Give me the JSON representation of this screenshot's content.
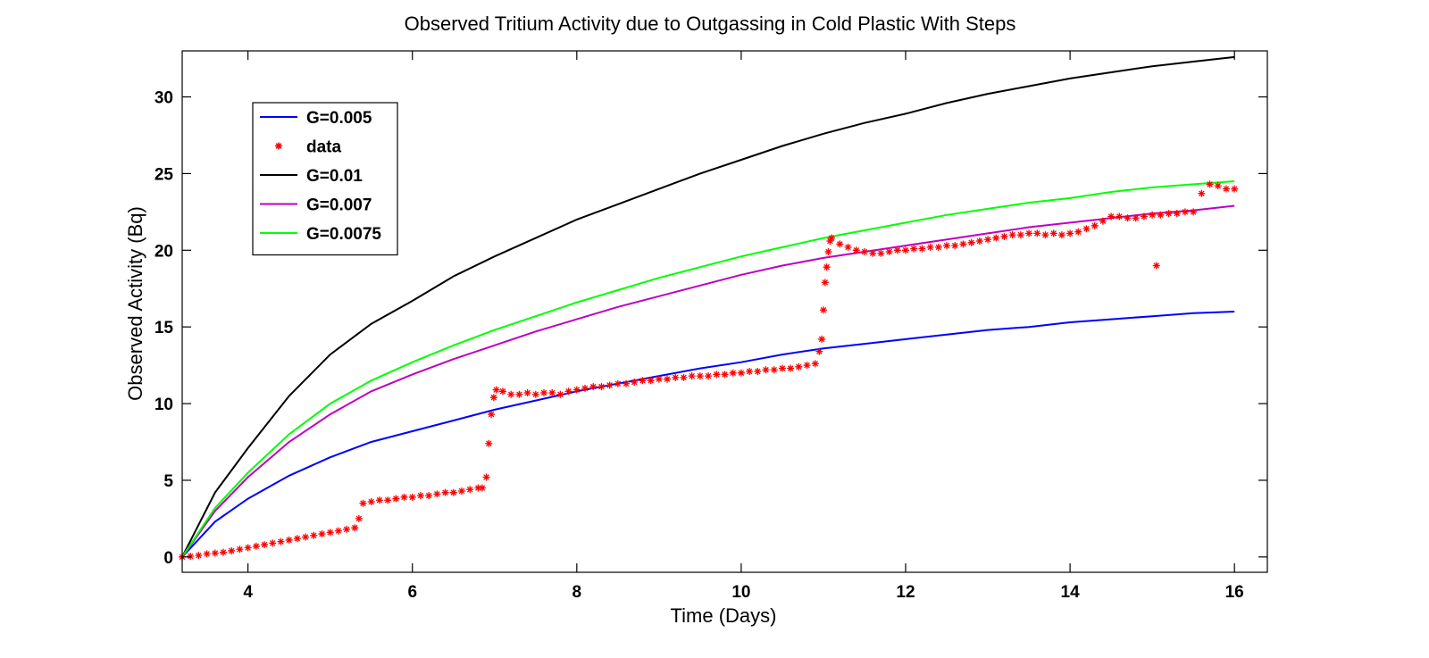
{
  "chart_data": {
    "type": "line",
    "title": "Observed Tritium Activity due to Outgassing in Cold Plastic With Steps",
    "xlabel": "Time (Days)",
    "ylabel": "Observed Activity (Bq)",
    "xlim": [
      3.2,
      16.4
    ],
    "ylim": [
      -1,
      33
    ],
    "xticks": [
      4,
      6,
      8,
      10,
      12,
      14,
      16
    ],
    "yticks": [
      0,
      5,
      10,
      15,
      20,
      25,
      30
    ],
    "grid": false,
    "legend_position": "top-left",
    "colors": {
      "G=0.005": "#0000ff",
      "data": "#ff0000",
      "G=0.01": "#000000",
      "G=0.007": "#bf00bf",
      "G=0.0075": "#00ff00"
    },
    "legend": [
      "G=0.005",
      "data",
      "G=0.01",
      "G=0.007",
      "G=0.0075"
    ],
    "series": [
      {
        "name": "G=0.005",
        "kind": "line",
        "color": "#0000ff",
        "x": [
          3.2,
          3.6,
          4.0,
          4.5,
          5.0,
          5.5,
          6.0,
          6.5,
          7.0,
          7.5,
          8.0,
          8.5,
          9.0,
          9.5,
          10.0,
          10.5,
          11.0,
          11.5,
          12.0,
          12.5,
          13.0,
          13.5,
          14.0,
          14.5,
          15.0,
          15.5,
          16.0
        ],
        "y": [
          0.0,
          2.3,
          3.8,
          5.3,
          6.5,
          7.5,
          8.2,
          8.9,
          9.6,
          10.2,
          10.8,
          11.3,
          11.8,
          12.3,
          12.7,
          13.2,
          13.6,
          13.9,
          14.2,
          14.5,
          14.8,
          15.0,
          15.3,
          15.5,
          15.7,
          15.9,
          16.0
        ]
      },
      {
        "name": "G=0.01",
        "kind": "line",
        "color": "#000000",
        "x": [
          3.2,
          3.6,
          4.0,
          4.5,
          5.0,
          5.5,
          6.0,
          6.5,
          7.0,
          7.5,
          8.0,
          8.5,
          9.0,
          9.5,
          10.0,
          10.5,
          11.0,
          11.5,
          12.0,
          12.5,
          13.0,
          13.5,
          14.0,
          14.5,
          15.0,
          15.5,
          16.0
        ],
        "y": [
          0.0,
          4.2,
          7.1,
          10.5,
          13.2,
          15.2,
          16.7,
          18.3,
          19.6,
          20.8,
          22.0,
          23.0,
          24.0,
          25.0,
          25.9,
          26.8,
          27.6,
          28.3,
          28.9,
          29.6,
          30.2,
          30.7,
          31.2,
          31.6,
          32.0,
          32.3,
          32.6
        ]
      },
      {
        "name": "G=0.007",
        "kind": "line",
        "color": "#bf00bf",
        "x": [
          3.2,
          3.6,
          4.0,
          4.5,
          5.0,
          5.5,
          6.0,
          6.5,
          7.0,
          7.5,
          8.0,
          8.5,
          9.0,
          9.5,
          10.0,
          10.5,
          11.0,
          11.5,
          12.0,
          12.5,
          13.0,
          13.5,
          14.0,
          14.5,
          15.0,
          15.5,
          16.0
        ],
        "y": [
          0.0,
          3.0,
          5.2,
          7.5,
          9.3,
          10.8,
          11.9,
          12.9,
          13.8,
          14.7,
          15.5,
          16.3,
          17.0,
          17.7,
          18.4,
          19.0,
          19.5,
          19.9,
          20.3,
          20.7,
          21.1,
          21.5,
          21.8,
          22.1,
          22.4,
          22.6,
          22.9
        ]
      },
      {
        "name": "G=0.0075",
        "kind": "line",
        "color": "#00ff00",
        "x": [
          3.2,
          3.6,
          4.0,
          4.5,
          5.0,
          5.5,
          6.0,
          6.5,
          7.0,
          7.5,
          8.0,
          8.5,
          9.0,
          9.5,
          10.0,
          10.5,
          11.0,
          11.5,
          12.0,
          12.5,
          13.0,
          13.5,
          14.0,
          14.5,
          15.0,
          15.5,
          16.0
        ],
        "y": [
          0.0,
          3.2,
          5.5,
          8.0,
          10.0,
          11.5,
          12.7,
          13.8,
          14.8,
          15.7,
          16.6,
          17.4,
          18.2,
          18.9,
          19.6,
          20.2,
          20.8,
          21.3,
          21.8,
          22.3,
          22.7,
          23.1,
          23.4,
          23.8,
          24.1,
          24.3,
          24.5
        ]
      },
      {
        "name": "data",
        "kind": "scatter",
        "marker": "*",
        "color": "#ff0000",
        "x": [
          3.2,
          3.3,
          3.4,
          3.5,
          3.6,
          3.7,
          3.8,
          3.9,
          4.0,
          4.1,
          4.2,
          4.3,
          4.4,
          4.5,
          4.6,
          4.7,
          4.8,
          4.9,
          5.0,
          5.1,
          5.2,
          5.3,
          5.35,
          5.4,
          5.5,
          5.6,
          5.7,
          5.8,
          5.9,
          6.0,
          6.1,
          6.2,
          6.3,
          6.4,
          6.5,
          6.6,
          6.7,
          6.8,
          6.85,
          6.9,
          6.93,
          6.96,
          6.99,
          7.02,
          7.1,
          7.2,
          7.3,
          7.4,
          7.5,
          7.6,
          7.7,
          7.8,
          7.9,
          8.0,
          8.1,
          8.2,
          8.3,
          8.4,
          8.5,
          8.6,
          8.7,
          8.8,
          8.9,
          9.0,
          9.1,
          9.2,
          9.3,
          9.4,
          9.5,
          9.6,
          9.7,
          9.8,
          9.9,
          10.0,
          10.1,
          10.2,
          10.3,
          10.4,
          10.5,
          10.6,
          10.7,
          10.8,
          10.9,
          10.95,
          10.98,
          11.0,
          11.02,
          11.04,
          11.06,
          11.08,
          11.1,
          11.2,
          11.3,
          11.4,
          11.5,
          11.6,
          11.7,
          11.8,
          11.9,
          12.0,
          12.1,
          12.2,
          12.3,
          12.4,
          12.5,
          12.6,
          12.7,
          12.8,
          12.9,
          13.0,
          13.1,
          13.2,
          13.3,
          13.4,
          13.5,
          13.6,
          13.7,
          13.8,
          13.9,
          14.0,
          14.1,
          14.2,
          14.3,
          14.4,
          14.5,
          14.6,
          14.7,
          14.8,
          14.9,
          15.0,
          15.05,
          15.1,
          15.2,
          15.3,
          15.4,
          15.5,
          15.6,
          15.7,
          15.8,
          15.9,
          16.0
        ],
        "y": [
          0.0,
          0.05,
          0.1,
          0.2,
          0.25,
          0.3,
          0.4,
          0.5,
          0.6,
          0.7,
          0.8,
          0.9,
          1.0,
          1.1,
          1.2,
          1.3,
          1.4,
          1.5,
          1.6,
          1.7,
          1.8,
          1.9,
          2.5,
          3.5,
          3.6,
          3.7,
          3.7,
          3.8,
          3.9,
          3.9,
          4.0,
          4.0,
          4.1,
          4.2,
          4.2,
          4.3,
          4.4,
          4.5,
          4.5,
          5.2,
          7.4,
          9.3,
          10.4,
          10.9,
          10.8,
          10.6,
          10.6,
          10.7,
          10.6,
          10.7,
          10.7,
          10.6,
          10.8,
          10.9,
          11.0,
          11.1,
          11.1,
          11.2,
          11.3,
          11.3,
          11.4,
          11.5,
          11.5,
          11.6,
          11.6,
          11.7,
          11.7,
          11.8,
          11.8,
          11.8,
          11.9,
          11.9,
          12.0,
          12.0,
          12.1,
          12.1,
          12.2,
          12.2,
          12.3,
          12.3,
          12.4,
          12.5,
          12.6,
          13.4,
          14.2,
          16.1,
          17.9,
          18.9,
          19.9,
          20.6,
          20.8,
          20.4,
          20.2,
          20.0,
          19.9,
          19.8,
          19.8,
          19.9,
          20.0,
          20.0,
          20.1,
          20.1,
          20.2,
          20.2,
          20.3,
          20.3,
          20.4,
          20.5,
          20.6,
          20.7,
          20.8,
          20.9,
          21.0,
          21.0,
          21.1,
          21.1,
          21.0,
          21.1,
          21.0,
          21.1,
          21.2,
          21.4,
          21.6,
          21.9,
          22.2,
          22.2,
          22.1,
          22.1,
          22.2,
          22.3,
          19.0,
          22.3,
          22.4,
          22.4,
          22.5,
          22.5,
          23.7,
          24.3,
          24.2,
          24.0,
          24.0
        ]
      }
    ]
  }
}
